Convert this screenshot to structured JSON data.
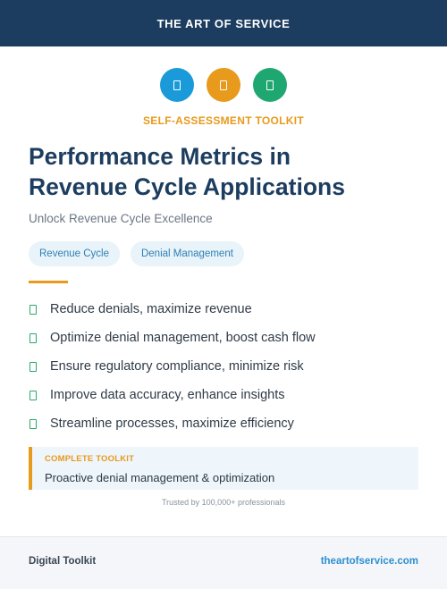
{
  "header": {
    "brand": "THE ART OF SERVICE"
  },
  "icons": [
    {
      "name": "document-icon",
      "color": "#1a9ad9"
    },
    {
      "name": "document-icon",
      "color": "#e89a1c"
    },
    {
      "name": "document-icon",
      "color": "#1fa772"
    }
  ],
  "kicker": "SELF-ASSESSMENT TOOLKIT",
  "title_line1": "Performance Metrics in",
  "title_line2": "Revenue Cycle Applications",
  "subtitle": "Unlock Revenue Cycle Excellence",
  "tags": [
    "Revenue Cycle",
    "Denial Management"
  ],
  "benefits": [
    "Reduce denials, maximize revenue",
    "Optimize denial management, boost cash flow",
    "Ensure regulatory compliance, minimize risk",
    "Improve data accuracy, enhance insights",
    "Streamline processes, maximize efficiency"
  ],
  "callout": {
    "label": "COMPLETE TOOLKIT",
    "text": "Proactive denial management & optimization"
  },
  "trusted": "Trusted by 100,000+ professionals",
  "footer": {
    "left": "Digital Toolkit",
    "right": "theartofservice.com"
  },
  "colors": {
    "navy": "#1c3d5f",
    "accent_orange": "#e89a1c",
    "accent_blue": "#1a9ad9",
    "accent_green": "#1fa772",
    "check_green": "#29a86a"
  }
}
